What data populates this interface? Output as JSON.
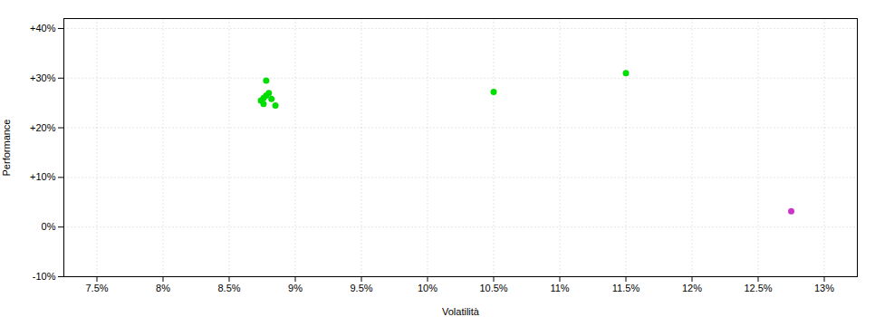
{
  "chart_data": {
    "type": "scatter",
    "xlabel": "Volatilità",
    "ylabel": "Performance",
    "series": [
      {
        "color": "#00dd00",
        "marker": "circle",
        "x": [
          8.78,
          8.8,
          8.78,
          8.76,
          8.74,
          8.82,
          8.76,
          8.85,
          10.5,
          11.5
        ],
        "values": [
          29.5,
          27.0,
          26.5,
          26.0,
          25.5,
          25.8,
          24.8,
          24.5,
          27.2,
          31.0
        ]
      },
      {
        "color": "#cc33cc",
        "marker": "circle",
        "x": [
          12.75
        ],
        "values": [
          3.2
        ]
      }
    ],
    "xlim": [
      7.25,
      13.25
    ],
    "ylim": [
      -10,
      42
    ],
    "xticks": [
      {
        "value": 7.5,
        "label": "7.5%"
      },
      {
        "value": 8.0,
        "label": "8%"
      },
      {
        "value": 8.5,
        "label": "8.5%"
      },
      {
        "value": 9.0,
        "label": "9%"
      },
      {
        "value": 9.5,
        "label": "9.5%"
      },
      {
        "value": 10.0,
        "label": "10%"
      },
      {
        "value": 10.5,
        "label": "10.5%"
      },
      {
        "value": 11.0,
        "label": "11%"
      },
      {
        "value": 11.5,
        "label": "11.5%"
      },
      {
        "value": 12.0,
        "label": "12%"
      },
      {
        "value": 12.5,
        "label": "12.5%"
      },
      {
        "value": 13.0,
        "label": "13%"
      }
    ],
    "yticks": [
      {
        "value": -10,
        "label": "-10%"
      },
      {
        "value": 0,
        "label": "0%"
      },
      {
        "value": 10,
        "label": "+10%"
      },
      {
        "value": 20,
        "label": "+20%"
      },
      {
        "value": 30,
        "label": "+30%"
      },
      {
        "value": 40,
        "label": "+40%"
      }
    ],
    "grid": true
  }
}
